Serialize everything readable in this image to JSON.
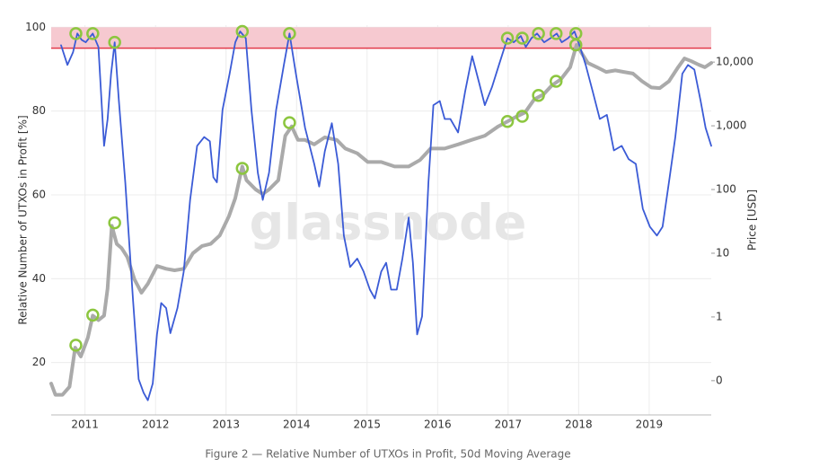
{
  "chart_data": {
    "type": "line",
    "caption": "Figure 2 — Relative Number of UTXOs in Profit, 50d Moving Average",
    "watermark": "glassnode",
    "y_label": "Relative Number of UTXOs in Profit [%]",
    "y2_label": "Price [USD]",
    "xlim": [
      2010.52,
      2019.88
    ],
    "xticks": [
      2011,
      2012,
      2013,
      2014,
      2015,
      2016,
      2017,
      2018,
      2019
    ],
    "ylim": [
      7.5,
      100.5
    ],
    "yticks": [
      20,
      40,
      60,
      80,
      100
    ],
    "y2lim": [
      0.029,
      38000
    ],
    "y2_log": true,
    "y2ticks": [
      {
        "value": 0.1,
        "label": "0"
      },
      1,
      10,
      100,
      {
        "value": 1000,
        "label": "1,000"
      },
      {
        "value": 10000,
        "label": "10,000"
      }
    ],
    "grid": true,
    "highlight_band": {
      "from": 95,
      "to": 100,
      "color": "#f6c9d0",
      "line_color": "#e23a4a"
    },
    "series": [
      {
        "color": "#aaaaaa",
        "axis": "y2",
        "x": [
          2010.52,
          2010.58,
          2010.68,
          2010.78,
          2010.86,
          2010.94,
          2011.04,
          2011.11,
          2011.19,
          2011.27,
          2011.32,
          2011.38,
          2011.45,
          2011.52,
          2011.6,
          2011.7,
          2011.8,
          2011.89,
          2012.02,
          2012.15,
          2012.27,
          2012.4,
          2012.53,
          2012.66,
          2012.78,
          2012.91,
          2013.04,
          2013.13,
          2013.23,
          2013.29,
          2013.42,
          2013.52,
          2013.61,
          2013.74,
          2013.84,
          2013.93,
          2014.02,
          2014.12,
          2014.25,
          2014.4,
          2014.57,
          2014.69,
          2014.86,
          2015.01,
          2015.2,
          2015.39,
          2015.59,
          2015.75,
          2015.9,
          2016.1,
          2016.29,
          2016.48,
          2016.67,
          2016.86,
          2016.99,
          2017.11,
          2017.24,
          2017.37,
          2017.5,
          2017.62,
          2017.75,
          2017.88,
          2017.97,
          2018.05,
          2018.13,
          2018.26,
          2018.39,
          2018.52,
          2018.64,
          2018.77,
          2018.9,
          2019.03,
          2019.15,
          2019.28,
          2019.41,
          2019.5,
          2019.6,
          2019.7,
          2019.79,
          2019.88
        ],
        "values": [
          0.09,
          0.06,
          0.06,
          0.08,
          0.33,
          0.24,
          0.47,
          1.05,
          0.89,
          1.05,
          2.8,
          27,
          14,
          12,
          8.7,
          3.9,
          2.4,
          3.3,
          6.3,
          5.7,
          5.4,
          5.7,
          10,
          13,
          14,
          19,
          38,
          73,
          230,
          140,
          100,
          85,
          100,
          140,
          700,
          980,
          600,
          600,
          510,
          660,
          600,
          440,
          370,
          270,
          270,
          230,
          230,
          290,
          440,
          440,
          510,
          600,
          700,
          980,
          1170,
          1380,
          1620,
          2600,
          3100,
          4300,
          5400,
          8300,
          18600,
          13400,
          9700,
          8300,
          7000,
          7400,
          7000,
          6600,
          5000,
          4000,
          3900,
          5000,
          8300,
          11400,
          10300,
          9100,
          8300,
          9700
        ]
      },
      {
        "color": "#3b5bd6",
        "axis": "y",
        "x": [
          2010.66,
          2010.75,
          2010.83,
          2010.89,
          2010.95,
          2011.01,
          2011.11,
          2011.19,
          2011.27,
          2011.32,
          2011.37,
          2011.42,
          2011.48,
          2011.57,
          2011.68,
          2011.76,
          2011.83,
          2011.89,
          2011.96,
          2012.02,
          2012.08,
          2012.15,
          2012.21,
          2012.31,
          2012.4,
          2012.49,
          2012.59,
          2012.69,
          2012.77,
          2012.82,
          2012.87,
          2012.95,
          2013.05,
          2013.13,
          2013.2,
          2013.28,
          2013.36,
          2013.45,
          2013.52,
          2013.61,
          2013.71,
          2013.82,
          2013.9,
          2013.99,
          2014.12,
          2014.25,
          2014.32,
          2014.4,
          2014.5,
          2014.59,
          2014.67,
          2014.76,
          2014.86,
          2014.95,
          2015.04,
          2015.11,
          2015.2,
          2015.27,
          2015.34,
          2015.42,
          2015.5,
          2015.59,
          2015.65,
          2015.71,
          2015.78,
          2015.87,
          2015.94,
          2016.03,
          2016.1,
          2016.18,
          2016.29,
          2016.39,
          2016.49,
          2016.59,
          2016.67,
          2016.77,
          2016.87,
          2016.99,
          2017.08,
          2017.18,
          2017.25,
          2017.33,
          2017.41,
          2017.51,
          2017.6,
          2017.69,
          2017.76,
          2017.85,
          2017.94,
          2018.02,
          2018.1,
          2018.2,
          2018.3,
          2018.4,
          2018.5,
          2018.61,
          2018.71,
          2018.81,
          2018.91,
          2019.01,
          2019.11,
          2019.19,
          2019.29,
          2019.37,
          2019.47,
          2019.55,
          2019.64,
          2019.73,
          2019.8,
          2019.88
        ],
        "values": [
          95.7,
          91,
          94,
          98.5,
          97,
          96.4,
          98.5,
          95.3,
          71.7,
          78,
          88.9,
          96.4,
          82.4,
          63,
          35,
          16,
          12.8,
          11,
          15,
          26.7,
          34.2,
          33,
          27,
          33,
          41.7,
          58.8,
          71.7,
          73.8,
          72.8,
          64.2,
          63,
          80.3,
          88.9,
          96.4,
          99,
          97.4,
          80.3,
          65.3,
          58.8,
          65.3,
          80.3,
          91,
          98.5,
          88.9,
          76,
          67.4,
          62,
          70.4,
          77.1,
          67.4,
          50.3,
          42.8,
          44.8,
          41.7,
          37.4,
          35.3,
          41.7,
          43.8,
          37.4,
          37.4,
          44.8,
          54.6,
          43.8,
          26.7,
          31,
          63,
          81.4,
          82.4,
          78.1,
          78.1,
          74.9,
          84.6,
          93.1,
          86.6,
          81.4,
          85.7,
          91,
          97.4,
          96.4,
          97.9,
          95.3,
          97.4,
          98.5,
          96.4,
          97.4,
          98.5,
          96.4,
          97.4,
          99,
          95.3,
          91,
          84.6,
          78.1,
          79.1,
          70.6,
          71.7,
          68.5,
          67.4,
          56.7,
          52.4,
          50.3,
          52.4,
          64.2,
          73.8,
          88.9,
          91,
          89.9,
          82.4,
          76,
          71.7
        ]
      }
    ],
    "markers": {
      "color": "#8cc63f",
      "x": [
        2010.87,
        2011.11,
        2011.42,
        2013.23,
        2013.9,
        2016.99,
        2017.2,
        2017.43,
        2017.68,
        2017.96
      ],
      "y": [
        98.5,
        98.5,
        96.4,
        99,
        98.5,
        97.4,
        97.4,
        98.5,
        98.5,
        98.5
      ],
      "y2": [
        0.36,
        1.07,
        30,
        215,
        1120,
        1170,
        1410,
        3000,
        5000,
        18600
      ]
    }
  }
}
